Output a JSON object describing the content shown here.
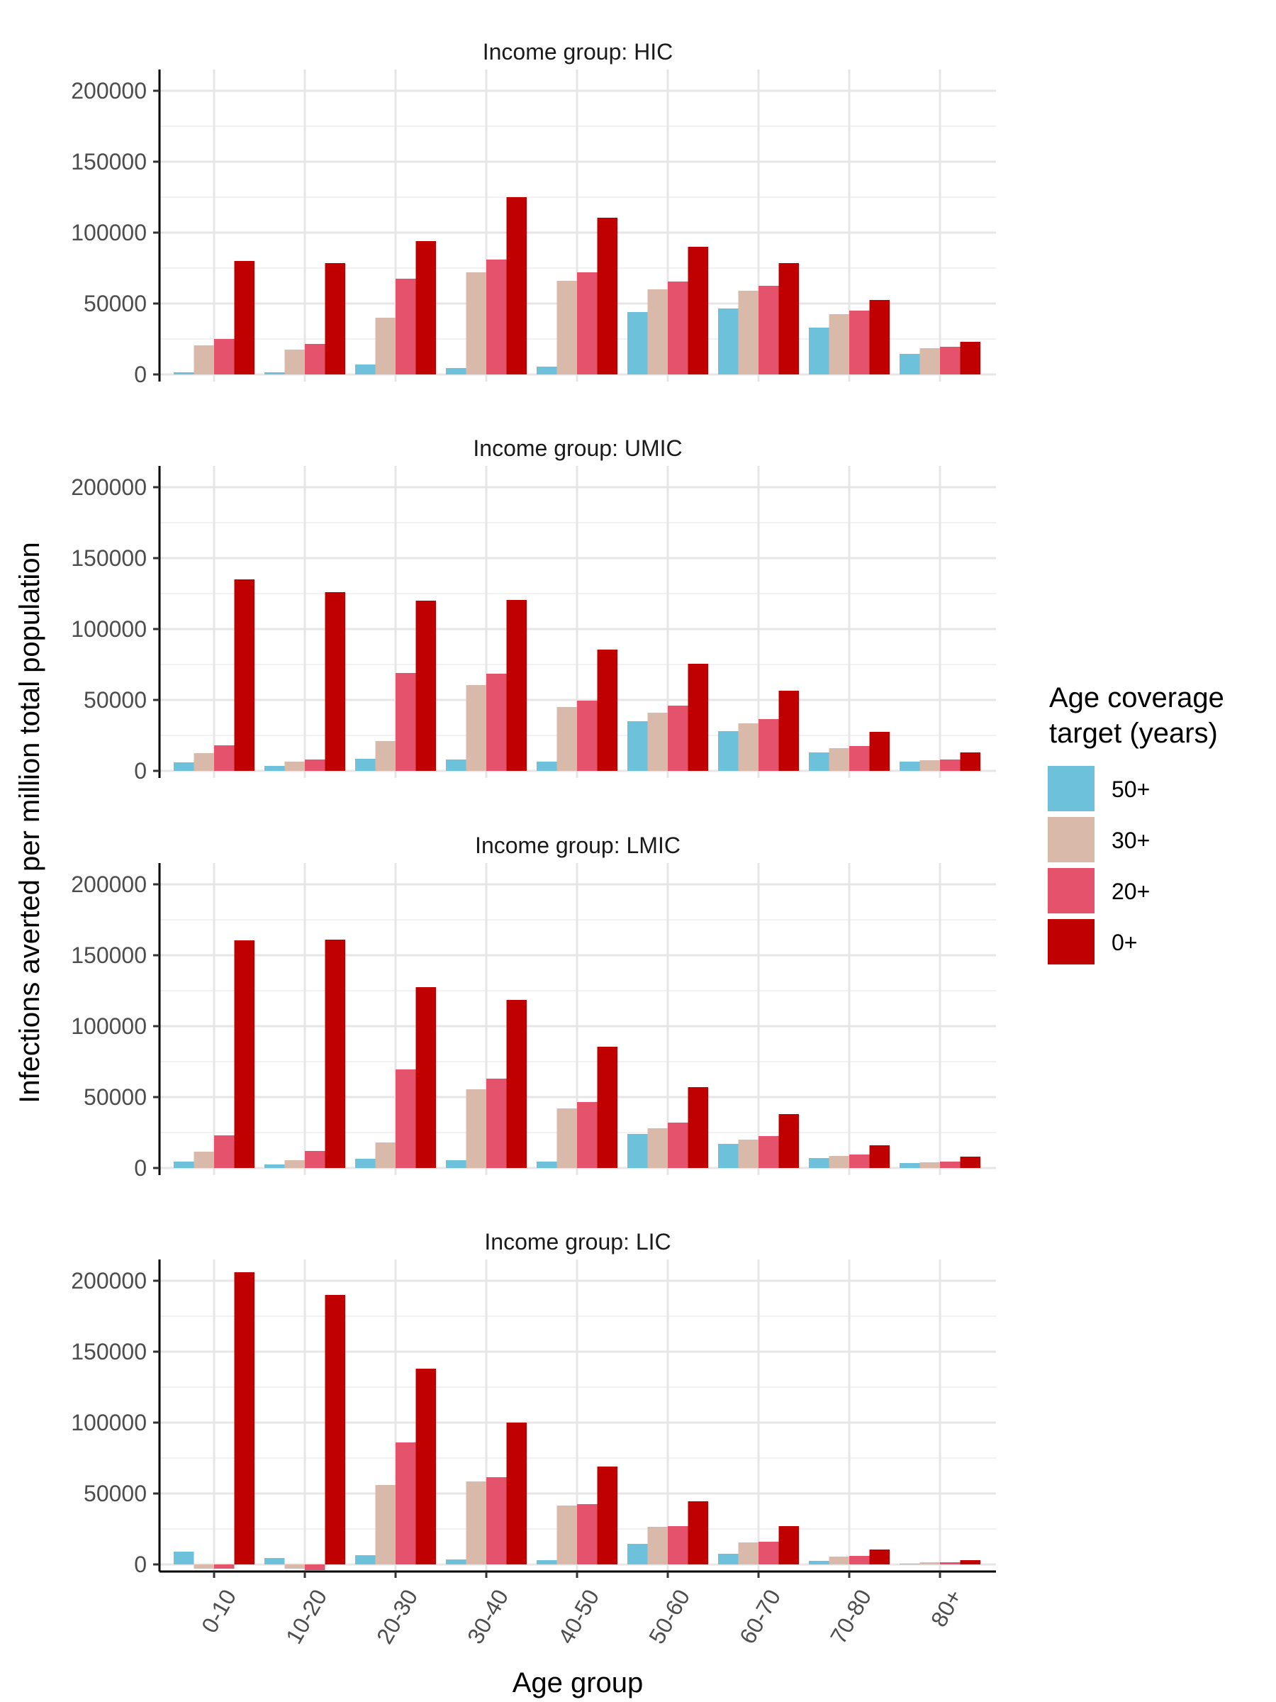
{
  "chart_data": {
    "type": "bar",
    "ylabel": "Infections averted per million total population",
    "xlabel": "Age group",
    "categories": [
      "0-10",
      "10-20",
      "20-30",
      "30-40",
      "40-50",
      "50-60",
      "60-70",
      "70-80",
      "80+"
    ],
    "ylim": [
      -5000,
      215000
    ],
    "yticks": [
      0,
      50000,
      100000,
      150000,
      200000
    ],
    "grid": true,
    "legend": {
      "title": "Age coverage target (years)",
      "title_lines": [
        "Age coverage",
        "target (years)"
      ],
      "placement": "right",
      "entries": [
        {
          "name": "50+",
          "color": "#6EC1DB"
        },
        {
          "name": "30+",
          "color": "#D9B9A9"
        },
        {
          "name": "20+",
          "color": "#E4526C"
        },
        {
          "name": "0+",
          "color": "#C00000"
        }
      ]
    },
    "panels": [
      {
        "title": "Income group: HIC",
        "series": [
          {
            "name": "50+",
            "values": [
              1500,
              1500,
              7000,
              4500,
              5500,
              44000,
              46500,
              33000,
              14500
            ]
          },
          {
            "name": "30+",
            "values": [
              20500,
              17500,
              40000,
              72000,
              66000,
              60000,
              59000,
              42500,
              18500
            ]
          },
          {
            "name": "20+",
            "values": [
              25000,
              21500,
              67500,
              81000,
              72000,
              65500,
              62500,
              45000,
              19500
            ]
          },
          {
            "name": "0+",
            "values": [
              80000,
              78500,
              94000,
              125000,
              110500,
              90000,
              78500,
              52500,
              23000
            ]
          }
        ]
      },
      {
        "title": "Income group: UMIC",
        "series": [
          {
            "name": "50+",
            "values": [
              6000,
              3500,
              8500,
              8000,
              6500,
              35000,
              28000,
              13000,
              6500
            ]
          },
          {
            "name": "30+",
            "values": [
              12500,
              6500,
              21000,
              60500,
              45000,
              41000,
              33500,
              16000,
              7500
            ]
          },
          {
            "name": "20+",
            "values": [
              18000,
              8000,
              69000,
              68500,
              49500,
              46000,
              36500,
              17500,
              8000
            ]
          },
          {
            "name": "0+",
            "values": [
              135000,
              126000,
              120000,
              120500,
              85500,
              75500,
              56500,
              27500,
              13000
            ]
          }
        ]
      },
      {
        "title": "Income group: LMIC",
        "series": [
          {
            "name": "50+",
            "values": [
              4500,
              2500,
              6500,
              5500,
              4500,
              24000,
              17000,
              7000,
              3500
            ]
          },
          {
            "name": "30+",
            "values": [
              11500,
              5500,
              18000,
              55500,
              42000,
              28000,
              20000,
              8500,
              4000
            ]
          },
          {
            "name": "20+",
            "values": [
              23000,
              12000,
              69500,
              63000,
              46500,
              32000,
              22500,
              9500,
              4500
            ]
          },
          {
            "name": "0+",
            "values": [
              160500,
              161000,
              127500,
              118500,
              85500,
              57000,
              38000,
              16000,
              8000
            ]
          }
        ]
      },
      {
        "title": "Income group: LIC",
        "series": [
          {
            "name": "50+",
            "values": [
              9000,
              4500,
              6500,
              3500,
              3000,
              14500,
              7500,
              2500,
              500
            ]
          },
          {
            "name": "30+",
            "values": [
              -3000,
              -3000,
              56000,
              58500,
              41500,
              26500,
              15500,
              5500,
              1500
            ]
          },
          {
            "name": "20+",
            "values": [
              -3000,
              -4000,
              86000,
              61500,
              42500,
              27000,
              16000,
              6000,
              1500
            ]
          },
          {
            "name": "0+",
            "values": [
              206000,
              190000,
              138000,
              100000,
              69000,
              44500,
              27000,
              10500,
              3000
            ]
          }
        ]
      }
    ]
  }
}
